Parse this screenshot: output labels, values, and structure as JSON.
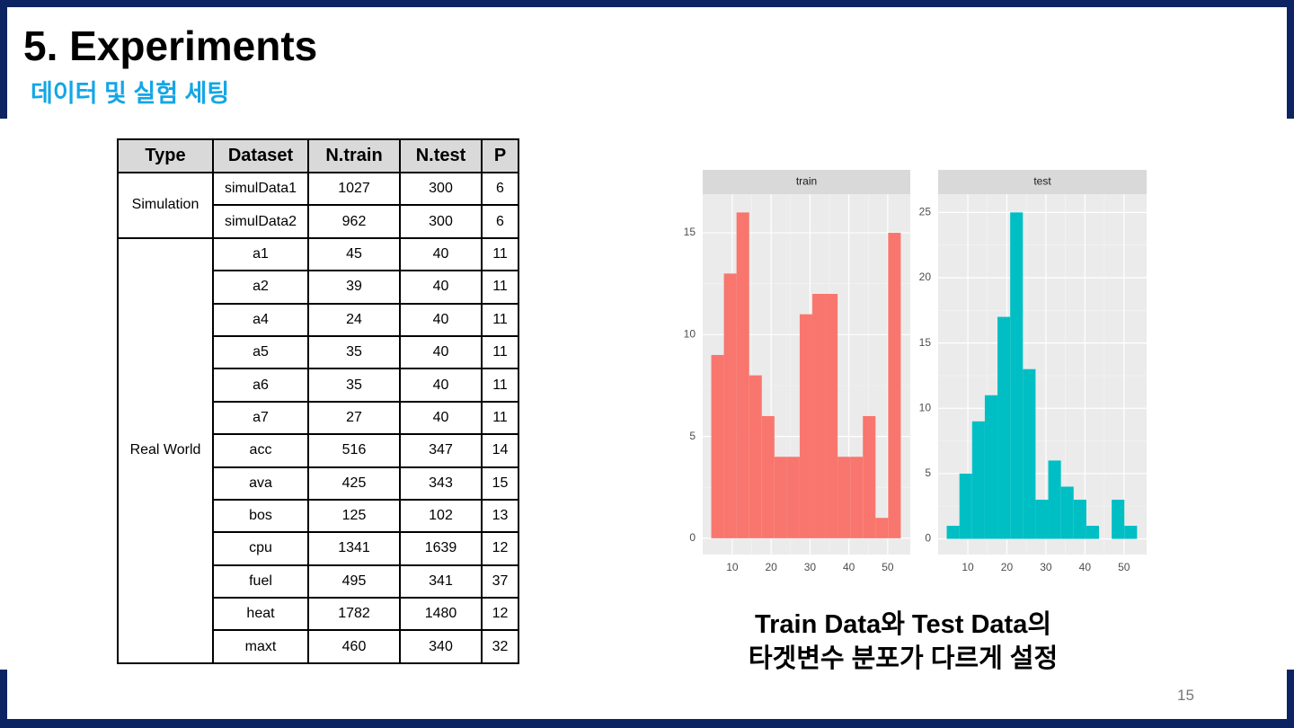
{
  "header": {
    "title": "5. Experiments",
    "subtitle": "데이터 및 실험 세팅"
  },
  "table": {
    "columns": [
      "Type",
      "Dataset",
      "N.train",
      "N.test",
      "P"
    ],
    "groups": [
      {
        "type": "Simulation",
        "rows": [
          [
            "simulData1",
            1027,
            300,
            6
          ],
          [
            "simulData2",
            962,
            300,
            6
          ]
        ]
      },
      {
        "type": "Real World",
        "rows": [
          [
            "a1",
            45,
            40,
            11
          ],
          [
            "a2",
            39,
            40,
            11
          ],
          [
            "a4",
            24,
            40,
            11
          ],
          [
            "a5",
            35,
            40,
            11
          ],
          [
            "a6",
            35,
            40,
            11
          ],
          [
            "a7",
            27,
            40,
            11
          ],
          [
            "acc",
            516,
            347,
            14
          ],
          [
            "ava",
            425,
            343,
            15
          ],
          [
            "bos",
            125,
            102,
            13
          ],
          [
            "cpu",
            1341,
            1639,
            12
          ],
          [
            "fuel",
            495,
            341,
            37
          ],
          [
            "heat",
            1782,
            1480,
            12
          ],
          [
            "maxt",
            460,
            340,
            32
          ]
        ]
      }
    ]
  },
  "chart_data": [
    {
      "type": "histogram",
      "title": "train",
      "bins": [
        4.6,
        7.85,
        11.1,
        14.35,
        17.6,
        20.85,
        24.1,
        27.35,
        30.6,
        33.85,
        37.1,
        40.35,
        43.6,
        46.85,
        50.1,
        53.35
      ],
      "values": [
        9,
        13,
        16,
        8,
        6,
        4,
        4,
        11,
        12,
        12,
        4,
        4,
        6,
        1,
        15
      ],
      "color": "#f8766d",
      "xlim": [
        2.4,
        55.8
      ],
      "xticks": [
        10,
        20,
        30,
        40,
        50
      ],
      "ylim": [
        -0.8,
        16.9
      ],
      "yticks": [
        0,
        5,
        10,
        15
      ],
      "grid": true
    },
    {
      "type": "histogram",
      "title": "test",
      "bins": [
        4.6,
        7.85,
        11.1,
        14.35,
        17.6,
        20.85,
        24.1,
        27.35,
        30.6,
        33.85,
        37.1,
        40.35,
        43.6,
        46.85,
        50.1,
        53.35
      ],
      "values": [
        1,
        5,
        9,
        11,
        17,
        25,
        13,
        3,
        6,
        4,
        3,
        1,
        0,
        3,
        1
      ],
      "color": "#00bfc4",
      "xlim": [
        2.4,
        55.8
      ],
      "xticks": [
        10,
        20,
        30,
        40,
        50
      ],
      "ylim": [
        -1.2,
        26.4
      ],
      "yticks": [
        0,
        5,
        10,
        15,
        20,
        25
      ],
      "grid": true
    }
  ],
  "caption": [
    "Train Data와 Test Data의",
    "타겟변수 분포가 다르게 설정"
  ],
  "page_number": 15
}
